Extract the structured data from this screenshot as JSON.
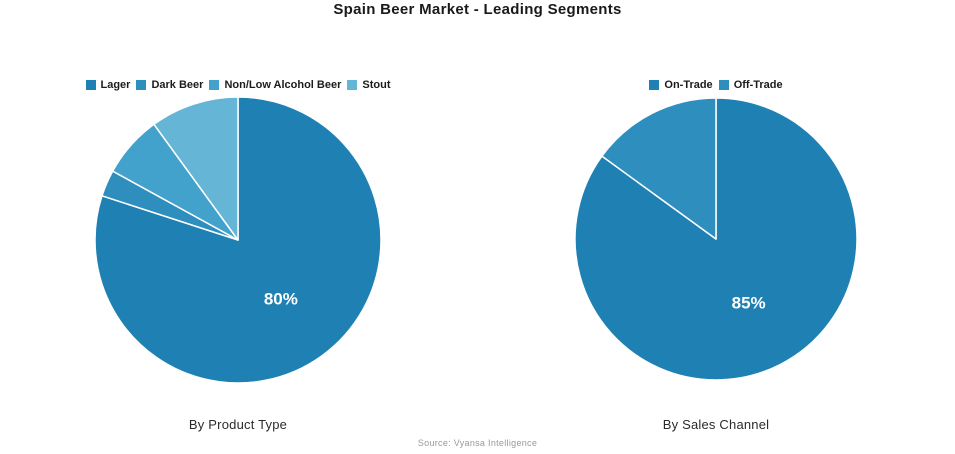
{
  "page": {
    "title": "Spain Beer Market - Leading Segments",
    "source": "Source: Vyansa Intelligence"
  },
  "colors": {
    "background": "#ffffff",
    "slice_divider": "#ffffff",
    "slice_label_text": "#ffffff",
    "palette": [
      "#1f81b3",
      "#2e8ebe",
      "#42a2cc",
      "#65b5d6"
    ]
  },
  "chart_data": [
    {
      "type": "pie",
      "title": "By Product Type",
      "legend_position": "top",
      "start_angle": "12-oclock",
      "direction": "clockwise",
      "slices": [
        {
          "label": "Lager",
          "value_pct": 80,
          "color": "#1f81b3",
          "display_label": "80%"
        },
        {
          "label": "Dark Beer",
          "value_pct": 3,
          "color": "#2e8ebe",
          "display_label": ""
        },
        {
          "label": "Non/Low Alcohol Beer",
          "value_pct": 7,
          "color": "#42a2cc",
          "display_label": ""
        },
        {
          "label": "Stout",
          "value_pct": 10,
          "color": "#65b5d6",
          "display_label": ""
        }
      ]
    },
    {
      "type": "pie",
      "title": "By Sales Channel",
      "legend_position": "top",
      "start_angle": "12-oclock",
      "direction": "clockwise",
      "slices": [
        {
          "label": "On-Trade",
          "value_pct": 85,
          "color": "#1f81b3",
          "display_label": "85%"
        },
        {
          "label": "Off-Trade",
          "value_pct": 15,
          "color": "#2e8ebe",
          "display_label": ""
        }
      ]
    }
  ]
}
